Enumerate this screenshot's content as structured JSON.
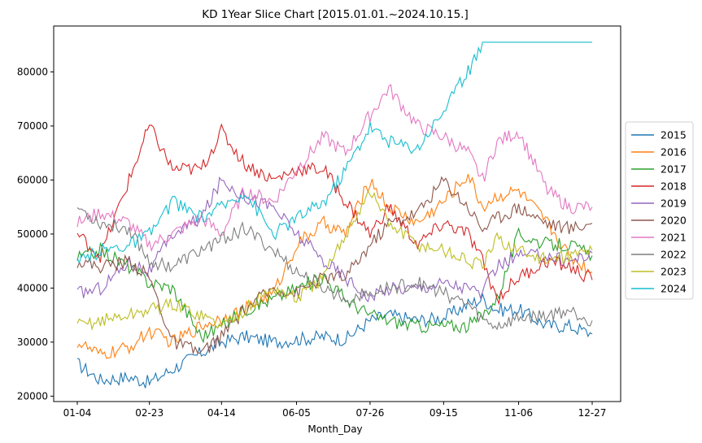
{
  "chart_data": {
    "type": "line",
    "title": "KD 1Year Slice Chart [2015.01.01.~2024.10.15.]",
    "xlabel": "Month_Day",
    "ylabel": "",
    "x_ticks": [
      "01-04",
      "02-23",
      "04-14",
      "06-05",
      "07-26",
      "09-15",
      "11-06",
      "12-27"
    ],
    "y_ticks": [
      20000,
      30000,
      40000,
      50000,
      60000,
      70000,
      80000
    ],
    "ylim": [
      19000,
      88500
    ],
    "grid": false,
    "legend_position": "right-outside",
    "x_day_of_year": [
      4,
      20,
      40,
      54,
      70,
      90,
      104,
      120,
      140,
      156,
      175,
      190,
      207,
      220,
      240,
      258,
      275,
      285,
      295,
      310,
      330,
      345,
      361
    ],
    "series": [
      {
        "name": "2015",
        "color": "#1f77b4",
        "values": [
          26000,
          23000,
          23500,
          22500,
          25000,
          28000,
          30000,
          31000,
          30000,
          30500,
          31000,
          30500,
          34000,
          35000,
          34000,
          34500,
          37000,
          38000,
          36000,
          36000,
          33000,
          33000,
          31500
        ]
      },
      {
        "name": "2016",
        "color": "#ff7f0e",
        "values": [
          30000,
          27500,
          29000,
          32000,
          30000,
          33000,
          34500,
          36000,
          39000,
          48000,
          52000,
          50000,
          60000,
          55000,
          52000,
          56000,
          61000,
          55000,
          57000,
          58000,
          52000,
          46000,
          43000
        ]
      },
      {
        "name": "2017",
        "color": "#2ca02c",
        "values": [
          45500,
          47000,
          44000,
          41000,
          40000,
          31000,
          33000,
          36000,
          38000,
          40000,
          42000,
          38000,
          35000,
          34000,
          33000,
          33000,
          33000,
          35000,
          38000,
          50000,
          48000,
          48000,
          46000
        ]
      },
      {
        "name": "2018",
        "color": "#d62728",
        "values": [
          50000,
          46000,
          60000,
          70000,
          62000,
          62000,
          69000,
          63000,
          60000,
          62000,
          62000,
          56000,
          50000,
          55000,
          48000,
          52000,
          50000,
          45000,
          38000,
          42000,
          45000,
          44000,
          41500
        ]
      },
      {
        "name": "2019",
        "color": "#9467bd",
        "values": [
          39000,
          40000,
          45000,
          43000,
          50000,
          53000,
          60000,
          57000,
          55000,
          50000,
          45000,
          42000,
          38000,
          40000,
          40000,
          41000,
          40000,
          39000,
          44000,
          46000,
          46000,
          45000,
          46500
        ]
      },
      {
        "name": "2020",
        "color": "#8c564b",
        "values": [
          45000,
          44000,
          45000,
          42000,
          30000,
          28000,
          31000,
          36000,
          40000,
          39000,
          42000,
          42000,
          48000,
          52000,
          54000,
          60000,
          55000,
          51000,
          53000,
          55000,
          52000,
          51000,
          52000
        ]
      },
      {
        "name": "2021",
        "color": "#e377c2",
        "values": [
          52000,
          54000,
          52000,
          48000,
          50000,
          53000,
          50000,
          58000,
          56000,
          62000,
          68000,
          65000,
          72000,
          77000,
          70000,
          68000,
          65000,
          60000,
          67000,
          69000,
          58000,
          55000,
          55000
        ]
      },
      {
        "name": "2022",
        "color": "#7f7f7f",
        "values": [
          55000,
          52000,
          51000,
          45000,
          44000,
          47000,
          49000,
          51000,
          47000,
          43000,
          40000,
          38000,
          39000,
          40000,
          41000,
          39000,
          37000,
          34000,
          33000,
          34500,
          35000,
          36000,
          34000
        ]
      },
      {
        "name": "2023",
        "color": "#bcbd22",
        "values": [
          33000,
          34000,
          35000,
          36000,
          37000,
          35000,
          33000,
          36000,
          40000,
          38000,
          42000,
          50000,
          58000,
          52000,
          48000,
          47000,
          45000,
          44000,
          49000,
          47000,
          45000,
          46000,
          47000
        ]
      },
      {
        "name": "2024",
        "color": "#17becf",
        "values": [
          44500,
          47000,
          48000,
          50000,
          56000,
          53000,
          55000,
          58000,
          50000,
          53000,
          56000,
          62000,
          70000,
          67000,
          66000,
          73000,
          80000,
          85500,
          85500,
          85500,
          85500,
          85500,
          85500
        ]
      }
    ]
  }
}
